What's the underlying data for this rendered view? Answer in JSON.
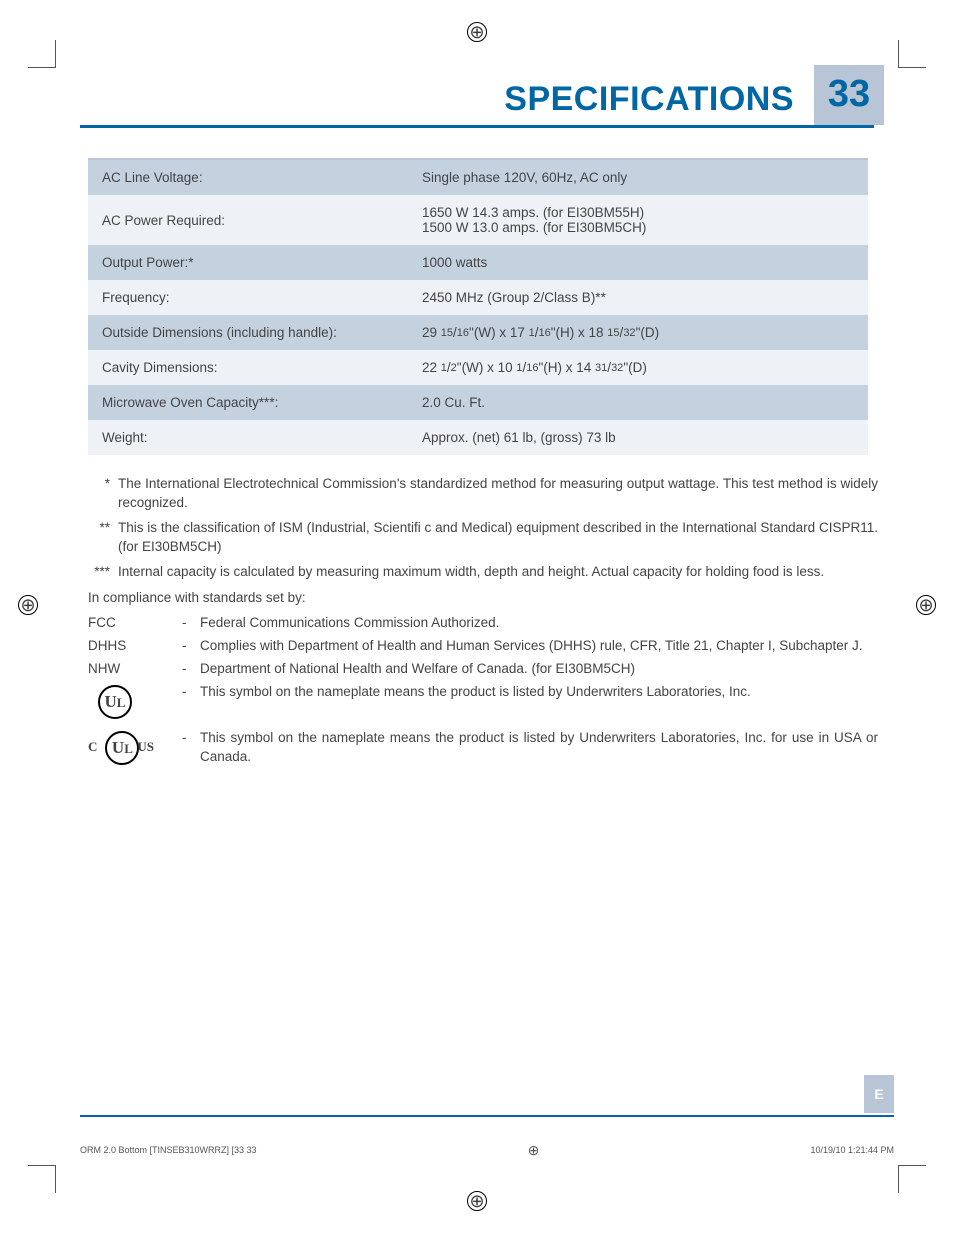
{
  "header": {
    "title": "SPECIFICATIONS",
    "page_number": "33"
  },
  "colors": {
    "accent_blue": "#0066a4",
    "band_light": "#eef2f6",
    "band_dark": "#c4d2e0",
    "tab_bg": "#b8c5d6"
  },
  "spec_table": {
    "rows": [
      {
        "label": "AC Line Voltage:",
        "value": "Single phase 120V, 60Hz, AC only"
      },
      {
        "label": "AC Power Required:",
        "value": "1650 W 14.3 amps. (for EI30BM55H)\n1500 W 13.0 amps. (for EI30BM5CH)"
      },
      {
        "label": "Output Power:*",
        "value": "1000 watts"
      },
      {
        "label": "Frequency:",
        "value": "2450 MHz (Group 2/Class B)**"
      },
      {
        "label": "Outside Dimensions (including handle):",
        "value": "29 15/16\"(W) x 17 1/16\"(H) x 18 15/32\"(D)"
      },
      {
        "label": "Cavity Dimensions:",
        "value": "22 1/2\"(W) x 10 1/16\"(H) x 14 31/32\"(D)"
      },
      {
        "label": "Microwave Oven Capacity***:",
        "value": "2.0 Cu. Ft."
      },
      {
        "label": "Weight:",
        "value": "Approx. (net) 61 lb, (gross) 73 lb"
      }
    ]
  },
  "footnotes": [
    {
      "mark": "*",
      "text": "The International Electrotechnical Commission's standardized method for measuring output wattage. This test method is widely recognized."
    },
    {
      "mark": "**",
      "text": "This is the classification of ISM (Industrial, Scientifi c and Medical) equipment described in the International Standard CISPR11. (for EI30BM5CH)"
    },
    {
      "mark": "***",
      "text": "Internal capacity is calculated by measuring maximum width, depth and height. Actual capacity for holding food is less."
    }
  ],
  "compliance": {
    "lead": "In compliance with standards set by:",
    "items": [
      {
        "label": "FCC",
        "text": "Federal Communications Commission Authorized."
      },
      {
        "label": "DHHS",
        "text": "Complies with Department of Health and Human Services (DHHS) rule, CFR, Title 21, Chapter I, Subchapter J."
      },
      {
        "label": "NHW",
        "text": "Department of National Health and Welfare of Canada. (for EI30BM5CH)"
      },
      {
        "label": "UL_ICON",
        "text": "This symbol on the nameplate means the product is listed by Underwriters Laboratories, Inc."
      },
      {
        "label": "CULUS_ICON",
        "text": "This symbol on the nameplate means the product is listed by Underwriters Laboratories, Inc. for use in USA or Canada."
      }
    ]
  },
  "side_tab": "E",
  "footer": {
    "left": "ORM 2.0 Bottom [TINSEB310WRRZ] [33   33",
    "right": "10/19/10   1:21:44 PM"
  }
}
